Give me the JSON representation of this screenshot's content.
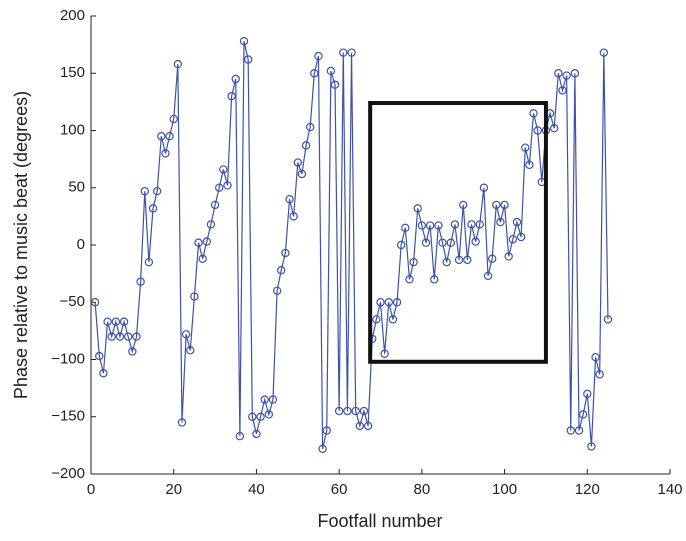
{
  "chart_data": {
    "type": "line",
    "xlabel": "Footfall number",
    "ylabel": "Phase relative to music beat (degrees)",
    "xlim": [
      0,
      140
    ],
    "ylim": [
      -200,
      200
    ],
    "xticks": [
      0,
      20,
      40,
      60,
      80,
      100,
      120,
      140
    ],
    "yticks": [
      {
        "value": -200,
        "label": "−200"
      },
      {
        "value": -150,
        "label": "−150"
      },
      {
        "value": -100,
        "label": "−100"
      },
      {
        "value": -50,
        "label": "−50"
      },
      0,
      50,
      100,
      150,
      200
    ],
    "grid": false,
    "highlight_box": {
      "x": [
        67.5,
        110
      ],
      "y": [
        -102,
        124
      ]
    },
    "series": [
      {
        "color": "#3d52a8",
        "x": [
          1,
          2,
          3,
          4,
          5,
          6,
          7,
          8,
          9,
          10,
          11,
          12,
          13,
          14,
          15,
          16,
          17,
          18,
          19,
          20,
          21,
          22,
          23,
          24,
          25,
          26,
          27,
          28,
          29,
          30,
          31,
          32,
          33,
          34,
          35,
          36,
          37,
          38,
          39,
          40,
          41,
          42,
          43,
          44,
          45,
          46,
          47,
          48,
          49,
          50,
          51,
          52,
          53,
          54,
          55,
          56,
          57,
          58,
          59,
          60,
          61,
          62,
          63,
          64,
          65,
          66,
          67,
          68,
          69,
          70,
          71,
          72,
          73,
          74,
          75,
          76,
          77,
          78,
          79,
          80,
          81,
          82,
          83,
          84,
          85,
          86,
          87,
          88,
          89,
          90,
          91,
          92,
          93,
          94,
          95,
          96,
          97,
          98,
          99,
          100,
          101,
          102,
          103,
          104,
          105,
          106,
          107,
          108,
          109,
          110,
          111,
          112,
          113,
          114,
          115,
          116,
          117,
          118,
          119,
          120,
          121,
          122,
          123,
          124,
          125
        ],
        "values": [
          -50,
          -97,
          -112,
          -67,
          -80,
          -67,
          -80,
          -67,
          -80,
          -93,
          -80,
          -32,
          47,
          -15,
          32,
          47,
          95,
          80,
          95,
          110,
          158,
          -155,
          -78,
          -92,
          -45,
          2,
          -12,
          3,
          18,
          35,
          50,
          66,
          52,
          130,
          145,
          -167,
          178,
          162,
          -150,
          -165,
          -150,
          -135,
          -148,
          -135,
          -40,
          -22,
          -7,
          40,
          25,
          72,
          62,
          87,
          103,
          150,
          165,
          -178,
          -162,
          152,
          140,
          -145,
          168,
          -145,
          168,
          -145,
          -158,
          -145,
          -158,
          -82,
          -65,
          -50,
          -95,
          -50,
          -65,
          -50,
          0,
          15,
          -30,
          -15,
          32,
          17,
          2,
          17,
          -30,
          17,
          2,
          -15,
          2,
          18,
          -13,
          35,
          -13,
          18,
          3,
          18,
          50,
          -27,
          -12,
          35,
          20,
          35,
          -10,
          5,
          20,
          7,
          85,
          70,
          115,
          100,
          55,
          100,
          115,
          102,
          150,
          135,
          148,
          -162,
          150,
          -162,
          -148,
          -130,
          -176,
          -98,
          -113,
          168,
          -65
        ]
      }
    ]
  }
}
